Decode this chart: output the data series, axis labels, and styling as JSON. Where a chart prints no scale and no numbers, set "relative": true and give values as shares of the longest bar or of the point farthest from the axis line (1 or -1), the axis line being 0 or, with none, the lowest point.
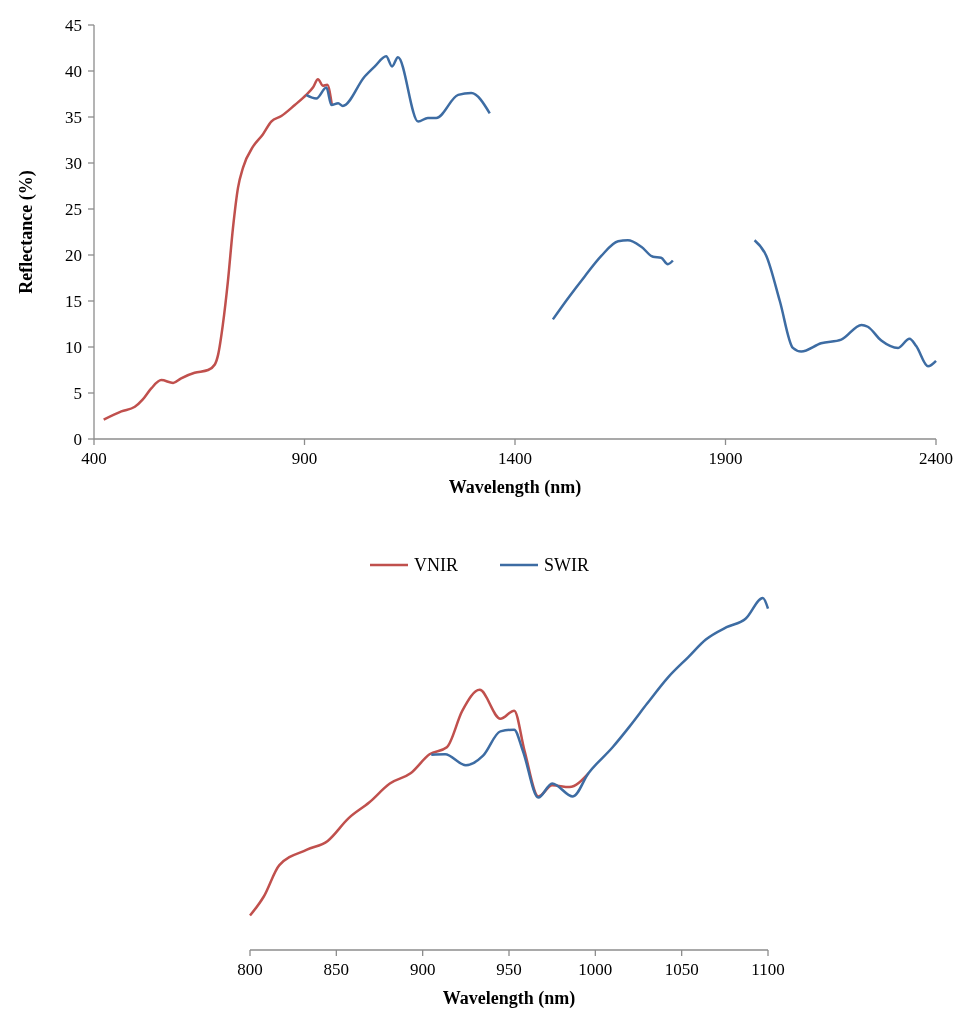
{
  "chart_data": [
    {
      "type": "line",
      "xlabel": "Wavelength (nm)",
      "ylabel": "Reflectance (%)",
      "xlim": [
        400,
        2400
      ],
      "xticks": [
        400,
        900,
        1400,
        1900,
        2400
      ],
      "ylim": [
        0,
        45
      ],
      "yticks": [
        0,
        5,
        10,
        15,
        20,
        25,
        30,
        35,
        40,
        45
      ],
      "legend": "bottom",
      "grid": false,
      "series": [
        {
          "name": "VNIR",
          "color": "#c0504d",
          "x": [
            423,
            465,
            497,
            516,
            536,
            560,
            588,
            607,
            639,
            671,
            687,
            695,
            706,
            718,
            730,
            742,
            754,
            778,
            801,
            821,
            845,
            877,
            904,
            920,
            932,
            944,
            954,
            965
          ],
          "values": [
            2.1,
            3.0,
            3.5,
            4.3,
            5.5,
            6.4,
            6.1,
            6.6,
            7.2,
            7.5,
            8.1,
            9.2,
            12.4,
            17.1,
            22.9,
            27.3,
            29.5,
            31.8,
            33.1,
            34.5,
            35.1,
            36.3,
            37.4,
            38.2,
            39.1,
            38.4,
            38.5,
            36.3
          ]
        },
        {
          "name": "SWIR",
          "color": "#3d6ca3",
          "x": [
            904,
            928,
            952,
            964,
            980,
            991,
            1043,
            1067,
            1094,
            1108,
            1122,
            1170,
            1193,
            1213,
            1265,
            1296,
            1340,
            1400,
            1490,
            1526,
            1566,
            1605,
            1645,
            1668,
            1700,
            1728,
            1747,
            1763,
            1775,
            1870,
            1969,
            1997,
            2029,
            2060,
            2080,
            2127,
            2175,
            2223,
            2238,
            2270,
            2310,
            2337,
            2353,
            2381,
            2400
          ],
          "values": [
            37.4,
            37.0,
            38.2,
            36.3,
            36.5,
            36.2,
            39.4,
            40.5,
            41.6,
            40.5,
            41.5,
            34.5,
            34.9,
            34.9,
            37.4,
            37.6,
            35.4,
            null,
            13.0,
            15.3,
            17.7,
            19.9,
            21.5,
            21.6,
            20.9,
            19.8,
            19.7,
            19.0,
            19.4,
            null,
            21.6,
            19.9,
            15.0,
            9.9,
            9.5,
            10.4,
            10.8,
            12.4,
            12.2,
            10.7,
            9.9,
            10.9,
            10.1,
            7.9,
            8.5
          ]
        }
      ]
    },
    {
      "type": "line",
      "xlabel": "Wavelength (nm)",
      "xlim": [
        800,
        1100
      ],
      "xticks": [
        800,
        850,
        900,
        950,
        1000,
        1050,
        1100
      ],
      "relative": true,
      "tick_labels": "x",
      "grid": false,
      "series": [
        {
          "color": "#c0504d",
          "x": [
            800,
            808,
            817,
            833,
            845,
            857,
            869,
            881,
            893,
            904,
            914,
            923,
            933,
            945,
            953,
            959,
            967,
            975,
            985,
            996
          ],
          "values": [
            0.098,
            0.152,
            0.241,
            0.285,
            0.31,
            0.374,
            0.419,
            0.473,
            0.502,
            0.556,
            0.576,
            0.68,
            0.739,
            0.657,
            0.68,
            0.566,
            0.436,
            0.468,
            0.463,
            0.502
          ]
        },
        {
          "color": "#3d6ca3",
          "x": [
            905,
            913,
            925,
            935,
            945,
            953,
            958,
            967,
            975,
            987,
            996,
            1010,
            1020,
            1030,
            1042,
            1054,
            1064,
            1076,
            1087,
            1097,
            1100
          ],
          "values": [
            0.555,
            0.556,
            0.525,
            0.552,
            0.621,
            0.626,
            0.566,
            0.433,
            0.473,
            0.436,
            0.502,
            0.576,
            0.636,
            0.7,
            0.774,
            0.833,
            0.882,
            0.917,
            0.941,
            1,
            0.97
          ]
        }
      ]
    }
  ]
}
